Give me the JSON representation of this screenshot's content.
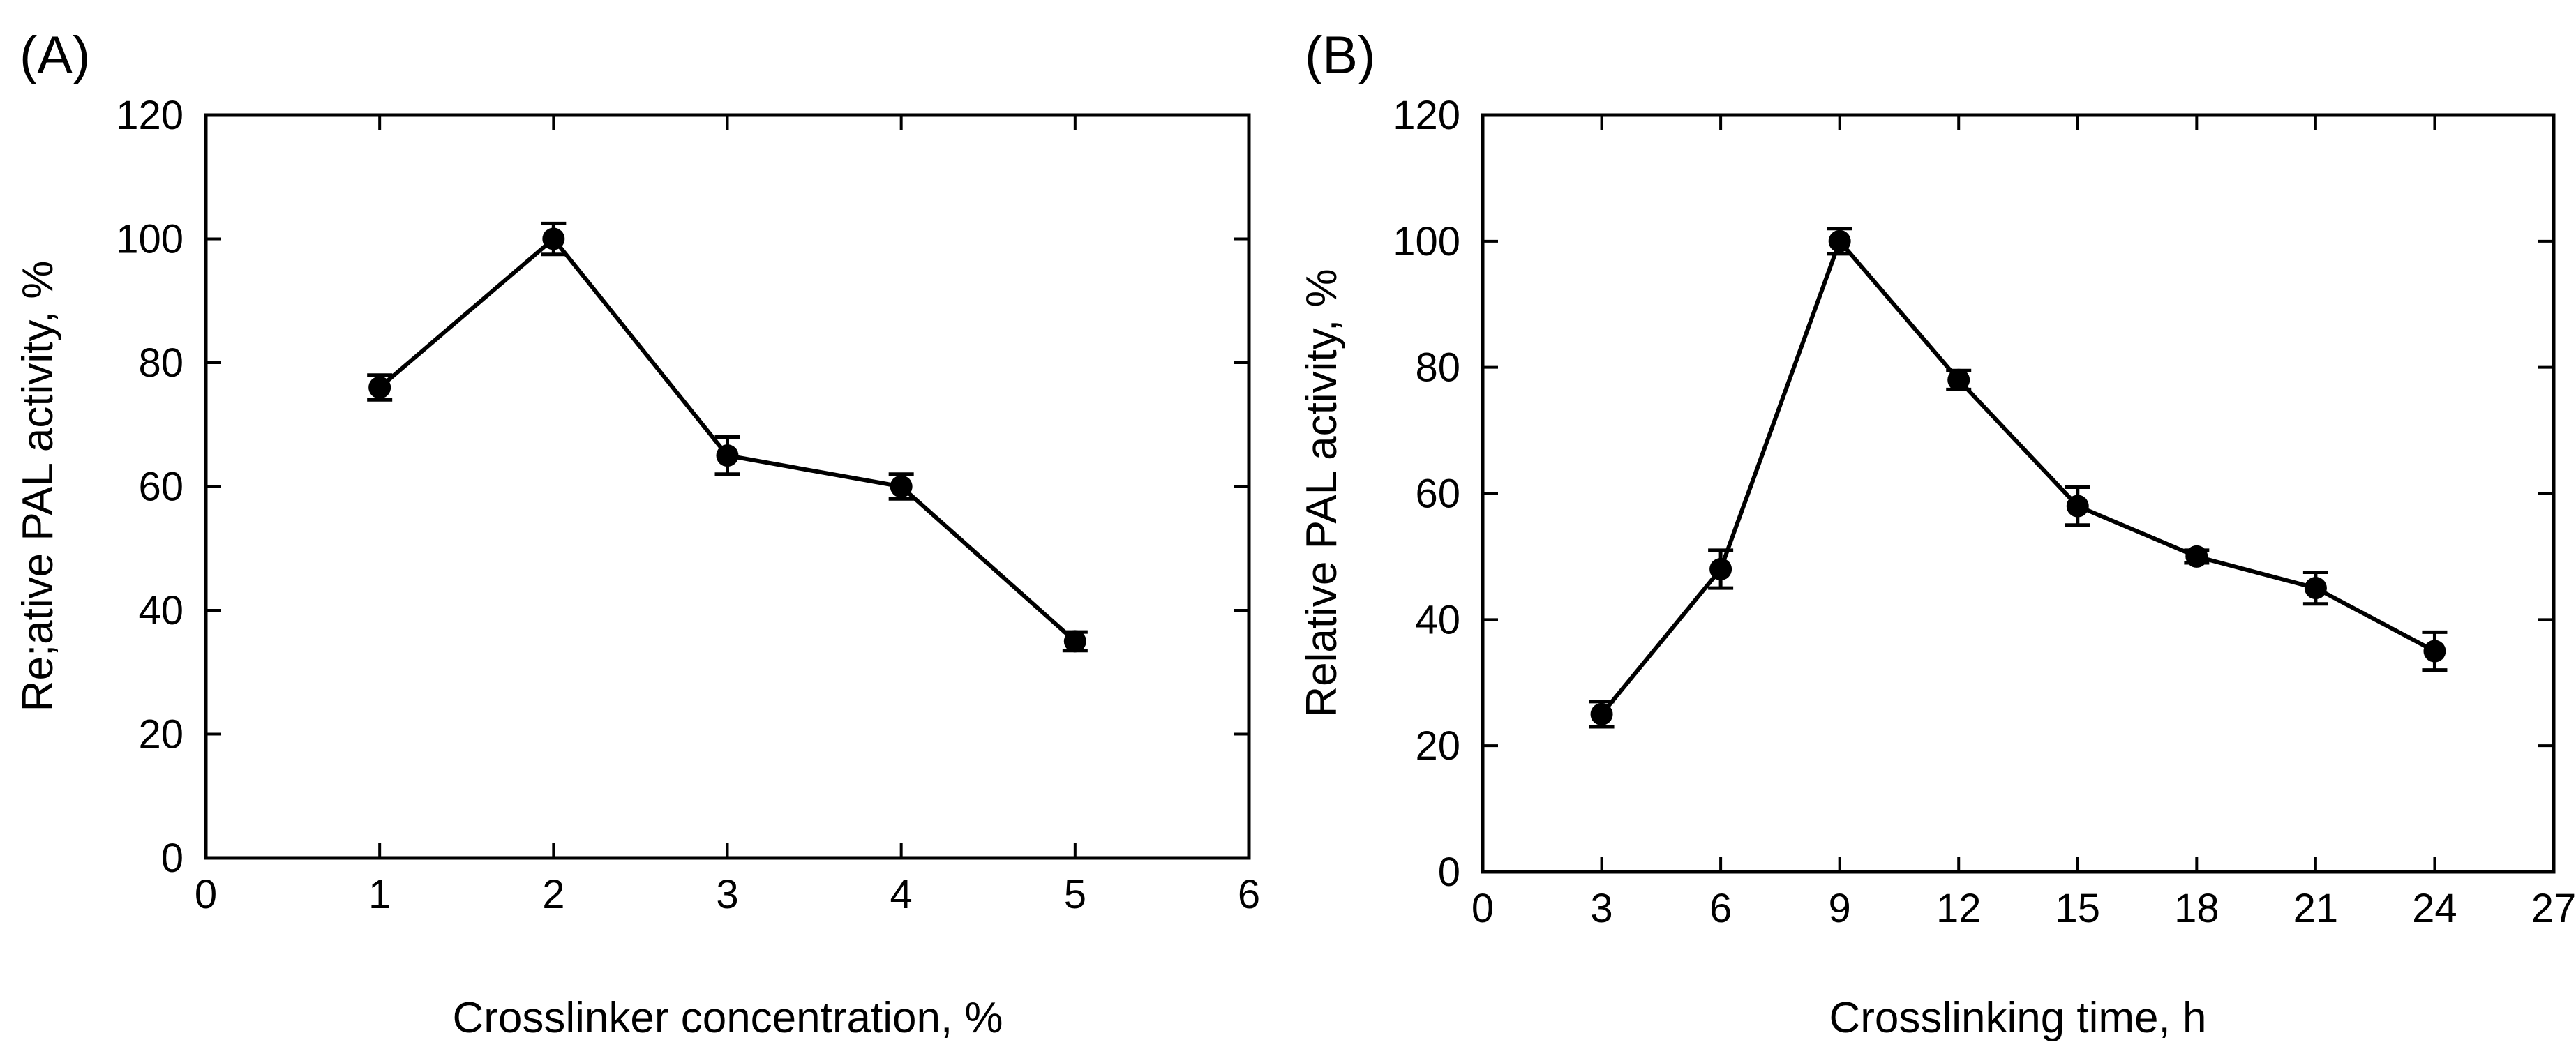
{
  "chart_data": [
    {
      "type": "line",
      "panel_label": "(A)",
      "xlabel": "Crosslinker concentration, %",
      "ylabel": "Re;ative PAL activity, %",
      "xlim": [
        0,
        6
      ],
      "ylim": [
        0,
        120
      ],
      "xticks": [
        0,
        1,
        2,
        3,
        4,
        5,
        6
      ],
      "yticks": [
        0,
        20,
        40,
        60,
        80,
        100,
        120
      ],
      "x": [
        1,
        2,
        3,
        4,
        5
      ],
      "y": [
        76,
        100,
        65,
        60,
        35
      ],
      "yerr": [
        2,
        2.5,
        3,
        2,
        1.5
      ],
      "marker": "circle",
      "color": "#000000"
    },
    {
      "type": "line",
      "panel_label": "(B)",
      "xlabel": "Crosslinking time, h",
      "ylabel": "Relative PAL activity, %",
      "xlim": [
        0,
        27
      ],
      "ylim": [
        0,
        120
      ],
      "xticks": [
        0,
        3,
        6,
        9,
        12,
        15,
        18,
        21,
        24,
        27
      ],
      "yticks": [
        0,
        20,
        40,
        60,
        80,
        100,
        120
      ],
      "x": [
        3,
        6,
        9,
        12,
        15,
        18,
        21,
        24
      ],
      "y": [
        25,
        48,
        100,
        78,
        58,
        50,
        45,
        35
      ],
      "yerr": [
        2,
        3,
        2,
        1.5,
        3,
        1,
        2.5,
        3
      ],
      "marker": "circle",
      "color": "#000000"
    }
  ]
}
